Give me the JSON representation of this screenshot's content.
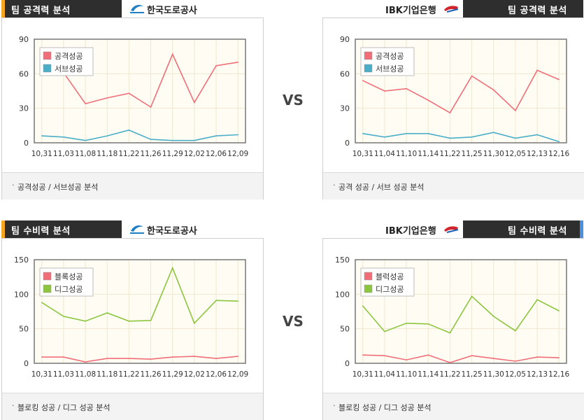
{
  "vs_label": "VS",
  "home_team": "한국도로공사",
  "away_team": "IBK기업은행",
  "colors": {
    "header_bg": "#2e2e2e",
    "accent_orange": "#f5a623",
    "accent_blue": "#4a90e2",
    "red_series": "#f06e78",
    "blue_series": "#4aaec8",
    "green_series": "#8cc63f"
  },
  "panels": [
    {
      "title": "팀 공격력 분석",
      "team": "한국도로공사",
      "footer": "공격성공 / 서브성공 분석",
      "chart_data": {
        "type": "line",
        "categories": [
          "10,31",
          "11,03",
          "11,08",
          "11,18",
          "11,22",
          "11,26",
          "11,29",
          "12,02",
          "12,06",
          "12,09"
        ],
        "yticks": [
          0,
          30,
          60,
          90
        ],
        "ylim": [
          0,
          90
        ],
        "legend": "top-left",
        "series": [
          {
            "name": "공격성공",
            "color": "#f06e78",
            "values": [
              63,
              61,
              34,
              39,
              43,
              31,
              77,
              35,
              67,
              70
            ]
          },
          {
            "name": "서브성공",
            "color": "#4aaec8",
            "values": [
              6,
              5,
              2,
              6,
              11,
              3,
              2,
              2,
              6,
              7
            ]
          }
        ]
      }
    },
    {
      "title": "팀 공격력 분석",
      "team": "IBK기업은행",
      "footer": "공격 성공 / 서브 성공 분석",
      "chart_data": {
        "type": "line",
        "categories": [
          "10,31",
          "11,04",
          "11,10",
          "11,14",
          "11,22",
          "11,25",
          "11,30",
          "12,05",
          "12,13",
          "12,16"
        ],
        "yticks": [
          0,
          30,
          60,
          90
        ],
        "ylim": [
          0,
          90
        ],
        "legend": "top-left",
        "series": [
          {
            "name": "공격성공",
            "color": "#f06e78",
            "values": [
              54,
              45,
              47,
              37,
              26,
              58,
              46,
              28,
              63,
              55
            ]
          },
          {
            "name": "서브성공",
            "color": "#4aaec8",
            "values": [
              8,
              5,
              8,
              8,
              4,
              5,
              9,
              4,
              7,
              1
            ]
          }
        ]
      }
    },
    {
      "title": "팀 수비력 분석",
      "team": "한국도로공사",
      "footer": "블로킹 성공 / 디그 성공 분석",
      "chart_data": {
        "type": "line",
        "categories": [
          "10,31",
          "11,03",
          "11,08",
          "11,18",
          "11,22",
          "11,26",
          "11,29",
          "12,02",
          "12,06",
          "12,09"
        ],
        "yticks": [
          0,
          50,
          100,
          150
        ],
        "ylim": [
          0,
          150
        ],
        "legend": "top-left",
        "series": [
          {
            "name": "블록성공",
            "color": "#f06e78",
            "values": [
              9,
              9,
              2,
              7,
              7,
              6,
              9,
              10,
              7,
              10
            ]
          },
          {
            "name": "디그성공",
            "color": "#8cc63f",
            "values": [
              88,
              68,
              61,
              73,
              61,
              62,
              138,
              58,
              91,
              90
            ]
          }
        ]
      }
    },
    {
      "title": "팀 수비력 분석",
      "team": "IBK기업은행",
      "footer": "블로킹 성공 / 디그 성공 분석",
      "chart_data": {
        "type": "line",
        "categories": [
          "10,31",
          "11,04",
          "11,10",
          "11,14",
          "11,22",
          "11,25",
          "11,30",
          "12,05",
          "12,13",
          "12,16"
        ],
        "yticks": [
          0,
          50,
          100,
          150
        ],
        "ylim": [
          0,
          150
        ],
        "legend": "top-left",
        "series": [
          {
            "name": "블럭성공",
            "color": "#f06e78",
            "values": [
              12,
              11,
              5,
              12,
              1,
              11,
              7,
              3,
              9,
              8
            ]
          },
          {
            "name": "디그성공",
            "color": "#8cc63f",
            "values": [
              83,
              46,
              58,
              57,
              44,
              97,
              68,
              47,
              92,
              76
            ]
          }
        ]
      }
    }
  ]
}
